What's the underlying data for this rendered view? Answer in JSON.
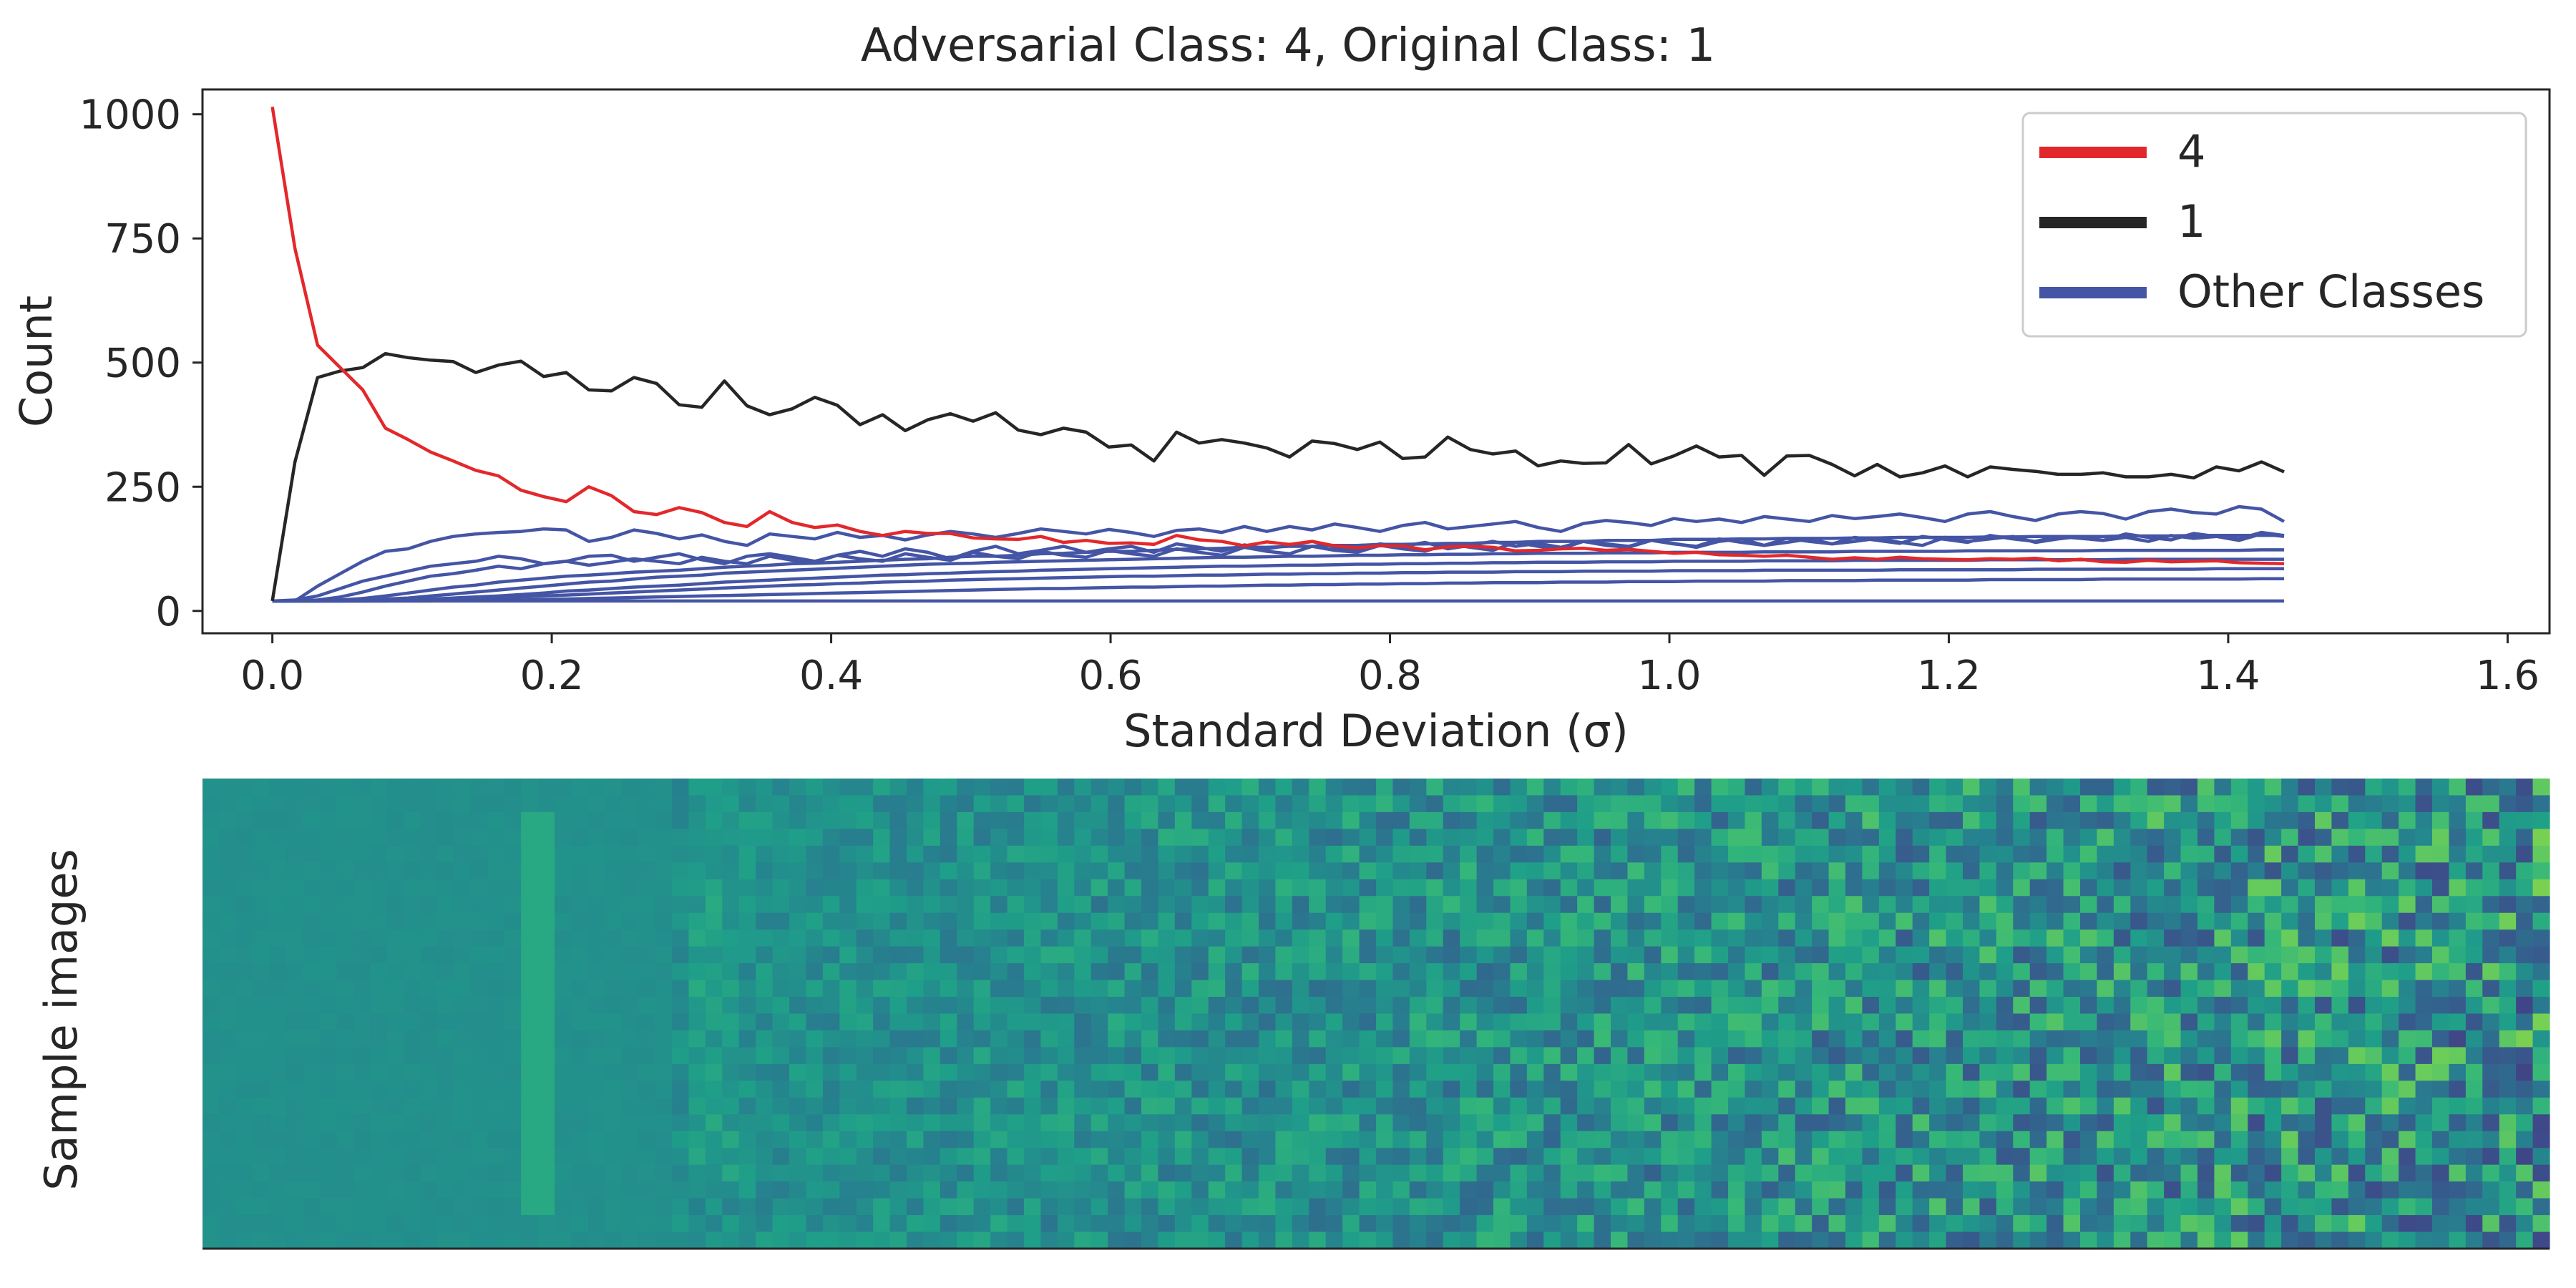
{
  "chart_data": [
    {
      "type": "line",
      "title": "Adversarial Class: 4, Original Class: 1",
      "xlabel": "Standard Deviation (σ)",
      "ylabel": "Count",
      "xlim": [
        -0.05,
        1.63
      ],
      "ylim": [
        -45,
        1050
      ],
      "xticks": [
        "0.0",
        "0.2",
        "0.4",
        "0.6",
        "0.8",
        "1.0",
        "1.2",
        "1.4",
        "1.6"
      ],
      "xtick_values": [
        0.0,
        0.2,
        0.4,
        0.6,
        0.8,
        1.0,
        1.2,
        1.4,
        1.6
      ],
      "yticks": [
        "0",
        "250",
        "500",
        "750",
        "1000"
      ],
      "ytick_values": [
        0,
        250,
        500,
        750,
        1000
      ],
      "grid": false,
      "legend_position": "top-right",
      "x_start": 0.0,
      "x_end": 1.44,
      "series": [
        {
          "name": "4",
          "color": "#e3282b",
          "values": [
            1015,
            730,
            535,
            490,
            445,
            368,
            345,
            320,
            302,
            283,
            272,
            243,
            230,
            220,
            250,
            232,
            200,
            194,
            208,
            198,
            178,
            170,
            200,
            178,
            168,
            173,
            160,
            152,
            160,
            156,
            156,
            147,
            145,
            144,
            150,
            138,
            142,
            136,
            137,
            134,
            152,
            143,
            140,
            131,
            139,
            134,
            140,
            131,
            127,
            131,
            131,
            123,
            129,
            130,
            128,
            121,
            122,
            125,
            126,
            122,
            124,
            120,
            116,
            118,
            113,
            112,
            110,
            112,
            108,
            104,
            107,
            104,
            108,
            105,
            104,
            103,
            105,
            104,
            106,
            101,
            104,
            99,
            98,
            102,
            99,
            100,
            101,
            97,
            96,
            95
          ]
        },
        {
          "name": "1",
          "color": "#262626",
          "values": [
            20,
            300,
            470,
            483,
            490,
            518,
            510,
            505,
            502,
            480,
            495,
            503,
            472,
            480,
            445,
            443,
            470,
            458,
            415,
            410,
            463,
            413,
            395,
            407,
            430,
            414,
            375,
            395,
            363,
            385,
            397,
            382,
            399,
            364,
            355,
            368,
            360,
            330,
            334,
            302,
            360,
            338,
            345,
            338,
            328,
            310,
            342,
            337,
            325,
            340,
            307,
            310,
            350,
            325,
            316,
            322,
            292,
            302,
            297,
            298,
            335,
            296,
            312,
            332,
            310,
            313,
            273,
            312,
            313,
            295,
            272,
            295,
            270,
            278,
            292,
            270,
            290,
            285,
            281,
            275,
            275,
            278,
            270,
            270,
            275,
            268,
            290,
            282,
            300,
            280
          ]
        },
        {
          "name": "Other Classes",
          "color": "#4555a5",
          "values": [
            20,
            20,
            50,
            75,
            100,
            120,
            125,
            140,
            150,
            155,
            158,
            160,
            165,
            163,
            140,
            148,
            163,
            156,
            145,
            153,
            140,
            132,
            155,
            150,
            145,
            158,
            148,
            152,
            143,
            153,
            160,
            155,
            148,
            156,
            165,
            160,
            155,
            164,
            158,
            150,
            162,
            165,
            158,
            170,
            160,
            170,
            163,
            175,
            168,
            160,
            172,
            178,
            165,
            170,
            175,
            180,
            168,
            160,
            176,
            182,
            178,
            172,
            186,
            180,
            185,
            178,
            190,
            185,
            180,
            192,
            186,
            190,
            195,
            188,
            180,
            195,
            200,
            190,
            182,
            195,
            200,
            196,
            185,
            200,
            205,
            198,
            195,
            210,
            205,
            180
          ]
        },
        {
          "name": "",
          "color": "#4555a5",
          "values": [
            20,
            22,
            30,
            45,
            60,
            70,
            80,
            90,
            95,
            100,
            110,
            105,
            95,
            100,
            110,
            112,
            100,
            108,
            115,
            103,
            95,
            110,
            115,
            108,
            100,
            112,
            120,
            110,
            125,
            118,
            105,
            120,
            130,
            115,
            122,
            130,
            118,
            125,
            130,
            118,
            135,
            128,
            120,
            133,
            125,
            132,
            140,
            128,
            122,
            135,
            130,
            138,
            125,
            132,
            140,
            130,
            136,
            128,
            140,
            135,
            130,
            142,
            136,
            128,
            140,
            145,
            132,
            138,
            145,
            135,
            140,
            146,
            138,
            132,
            148,
            140,
            145,
            150,
            138,
            145,
            150,
            142,
            148,
            140,
            152,
            146,
            150,
            142,
            155,
            150
          ]
        },
        {
          "name": "",
          "color": "#4555a5",
          "values": [
            20,
            20,
            22,
            28,
            38,
            50,
            60,
            70,
            75,
            82,
            90,
            85,
            95,
            100,
            92,
            98,
            105,
            100,
            95,
            108,
            100,
            95,
            110,
            102,
            98,
            112,
            105,
            100,
            115,
            108,
            102,
            118,
            110,
            105,
            120,
            112,
            108,
            122,
            115,
            110,
            125,
            118,
            112,
            128,
            120,
            115,
            130,
            122,
            118,
            132,
            125,
            120,
            135,
            128,
            122,
            138,
            130,
            125,
            140,
            132,
            128,
            142,
            135,
            130,
            145,
            138,
            132,
            146,
            140,
            135,
            148,
            142,
            136,
            150,
            144,
            138,
            152,
            145,
            140,
            150,
            146,
            142,
            155,
            148,
            143,
            156,
            150,
            145,
            158,
            152
          ]
        },
        {
          "name": "",
          "color": "#4555a5",
          "values": [
            20,
            20,
            20,
            22,
            25,
            30,
            36,
            42,
            48,
            52,
            58,
            62,
            66,
            70,
            72,
            75,
            78,
            80,
            82,
            85,
            88,
            90,
            92,
            95,
            96,
            98,
            100,
            102,
            104,
            105,
            108,
            110,
            110,
            112,
            115,
            116,
            118,
            120,
            120,
            122,
            124,
            125,
            126,
            128,
            128,
            130,
            130,
            132,
            132,
            134,
            134,
            135,
            136,
            136,
            138,
            138,
            140,
            140,
            140,
            142,
            142,
            142,
            144,
            144,
            144,
            145,
            145,
            146,
            146,
            146,
            147,
            147,
            148,
            148,
            148,
            148,
            149,
            149,
            150,
            150,
            150,
            150,
            151,
            151,
            151,
            152,
            152,
            152,
            152,
            152
          ]
        },
        {
          "name": "",
          "color": "#4555a5",
          "values": [
            20,
            20,
            20,
            20,
            22,
            24,
            26,
            30,
            34,
            38,
            42,
            46,
            50,
            54,
            58,
            60,
            64,
            68,
            70,
            72,
            76,
            78,
            80,
            82,
            84,
            86,
            88,
            90,
            92,
            94,
            95,
            96,
            98,
            99,
            100,
            101,
            102,
            103,
            104,
            105,
            106,
            107,
            108,
            108,
            109,
            110,
            110,
            111,
            112,
            112,
            113,
            113,
            114,
            114,
            115,
            115,
            116,
            116,
            116,
            117,
            117,
            117,
            118,
            118,
            118,
            118,
            119,
            119,
            119,
            119,
            120,
            120,
            120,
            120,
            120,
            121,
            121,
            121,
            121,
            121,
            121,
            122,
            122,
            122,
            122,
            122,
            122,
            122,
            123,
            123
          ]
        },
        {
          "name": "",
          "color": "#4555a5",
          "values": [
            20,
            20,
            20,
            20,
            20,
            21,
            22,
            24,
            26,
            28,
            30,
            33,
            36,
            40,
            42,
            45,
            48,
            50,
            52,
            55,
            58,
            60,
            62,
            64,
            66,
            68,
            70,
            72,
            73,
            75,
            76,
            78,
            79,
            80,
            82,
            83,
            84,
            85,
            86,
            87,
            88,
            89,
            90,
            90,
            91,
            92,
            92,
            93,
            94,
            94,
            95,
            95,
            96,
            96,
            97,
            97,
            98,
            98,
            98,
            99,
            99,
            99,
            100,
            100,
            100,
            100,
            101,
            101,
            101,
            101,
            102,
            102,
            102,
            102,
            102,
            102,
            103,
            103,
            103,
            103,
            103,
            103,
            104,
            104,
            104,
            104,
            104,
            104,
            104,
            104
          ]
        },
        {
          "name": "",
          "color": "#4555a5",
          "values": [
            20,
            20,
            20,
            20,
            20,
            20,
            21,
            22,
            23,
            24,
            26,
            28,
            30,
            32,
            34,
            36,
            38,
            40,
            42,
            44,
            46,
            48,
            50,
            52,
            53,
            55,
            56,
            58,
            59,
            60,
            62,
            63,
            64,
            65,
            66,
            67,
            68,
            69,
            70,
            70,
            71,
            72,
            72,
            73,
            74,
            74,
            75,
            75,
            76,
            76,
            77,
            77,
            78,
            78,
            78,
            79,
            79,
            79,
            80,
            80,
            80,
            80,
            81,
            81,
            81,
            81,
            82,
            82,
            82,
            82,
            82,
            82,
            83,
            83,
            83,
            83,
            83,
            83,
            84,
            84,
            84,
            84,
            84,
            84,
            84,
            84,
            85,
            85,
            85,
            85
          ]
        },
        {
          "name": "",
          "color": "#4555a5",
          "values": [
            20,
            20,
            20,
            20,
            20,
            20,
            20,
            20,
            21,
            21,
            22,
            22,
            23,
            24,
            25,
            26,
            27,
            28,
            29,
            30,
            31,
            32,
            33,
            34,
            35,
            36,
            37,
            38,
            39,
            40,
            41,
            42,
            43,
            44,
            45,
            45,
            46,
            47,
            48,
            48,
            49,
            50,
            50,
            51,
            52,
            52,
            53,
            53,
            54,
            54,
            55,
            55,
            56,
            56,
            57,
            57,
            57,
            58,
            58,
            58,
            59,
            59,
            59,
            60,
            60,
            60,
            60,
            61,
            61,
            61,
            61,
            62,
            62,
            62,
            62,
            62,
            63,
            63,
            63,
            63,
            63,
            64,
            64,
            64,
            64,
            64,
            64,
            64,
            65,
            65
          ]
        },
        {
          "name": "",
          "color": "#4555a5",
          "values": [
            20,
            20,
            20,
            20,
            20,
            20,
            20,
            20,
            20,
            20,
            20,
            20,
            20,
            20,
            20,
            20,
            20,
            20,
            20,
            20,
            20,
            20,
            20,
            20,
            20,
            20,
            20,
            20,
            20,
            20,
            20,
            20,
            20,
            20,
            20,
            20,
            20,
            20,
            20,
            20,
            20,
            20,
            20,
            20,
            20,
            20,
            20,
            20,
            20,
            20,
            20,
            20,
            20,
            20,
            20,
            20,
            20,
            20,
            20,
            20,
            20,
            20,
            20,
            20,
            20,
            20,
            20,
            20,
            20,
            20,
            20,
            20,
            20,
            20,
            20,
            20,
            20,
            20,
            20,
            20,
            20,
            20,
            20,
            20,
            20,
            20,
            20,
            20,
            20,
            20
          ]
        }
      ],
      "legend": [
        {
          "label": "4",
          "color": "#e3282b"
        },
        {
          "label": "1",
          "color": "#262626"
        },
        {
          "label": "Other Classes",
          "color": "#4555a5"
        }
      ]
    },
    {
      "type": "heatmap",
      "ylabel": "Sample images",
      "colormap": "viridis"
    }
  ]
}
